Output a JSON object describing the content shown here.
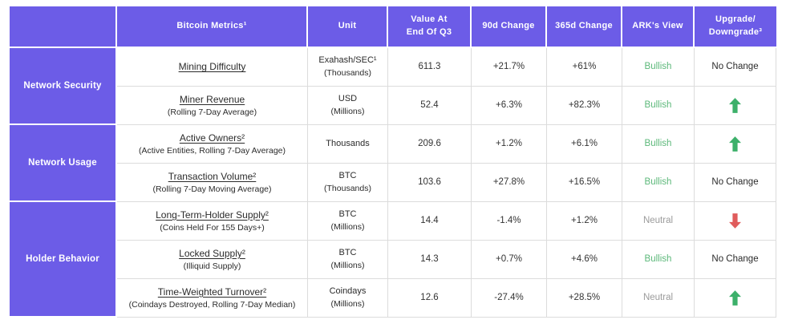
{
  "colors": {
    "purple": "#6c5ce7",
    "bullish": "#5cb87a",
    "neutral": "#9b9b9b",
    "arrow_up": "#3cb06a",
    "arrow_down": "#e05c5c"
  },
  "chart_data": {
    "type": "table",
    "headers": {
      "metrics": "Bitcoin Metrics¹",
      "unit": "Unit",
      "value": "Value At\nEnd Of Q3",
      "d90": "90d Change",
      "d365": "365d Change",
      "view": "ARK's View",
      "upgrade": "Upgrade/\nDowngrade³"
    },
    "groups": [
      {
        "label": "Network Security",
        "rows": [
          {
            "metric": "Mining Difficulty",
            "metric_sub": "",
            "unit": "Exahash/SEC¹",
            "unit_sub": "(Thousands)",
            "value": "611.3",
            "d90": "+21.7%",
            "d365": "+61%",
            "view": "Bullish",
            "view_style": "bullish",
            "change": {
              "type": "text",
              "label": "No Change"
            }
          },
          {
            "metric": "Miner Revenue",
            "metric_sub": "(Rolling 7-Day Average)",
            "unit": "USD",
            "unit_sub": "(Millions)",
            "value": "52.4",
            "d90": "+6.3%",
            "d365": "+82.3%",
            "view": "Bullish",
            "view_style": "bullish",
            "change": {
              "type": "up",
              "icon": "arrow-up-icon"
            }
          }
        ]
      },
      {
        "label": "Network Usage",
        "rows": [
          {
            "metric": "Active Owners²",
            "metric_sub": "(Active Entities, Rolling 7-Day Average)",
            "unit": "Thousands",
            "unit_sub": "",
            "value": "209.6",
            "d90": "+1.2%",
            "d365": "+6.1%",
            "view": "Bullish",
            "view_style": "bullish",
            "change": {
              "type": "up",
              "icon": "arrow-up-icon"
            }
          },
          {
            "metric": "Transaction Volume²",
            "metric_sub": "(Rolling 7-Day Moving Average)",
            "unit": "BTC",
            "unit_sub": "(Thousands)",
            "value": "103.6",
            "d90": "+27.8%",
            "d365": "+16.5%",
            "view": "Bullish",
            "view_style": "bullish",
            "change": {
              "type": "text",
              "label": "No Change"
            }
          }
        ]
      },
      {
        "label": "Holder Behavior",
        "rows": [
          {
            "metric": "Long-Term-Holder Supply²",
            "metric_sub": "(Coins Held For 155 Days+)",
            "unit": "BTC",
            "unit_sub": "(Millions)",
            "value": "14.4",
            "d90": "-1.4%",
            "d365": "+1.2%",
            "view": "Neutral",
            "view_style": "neutral",
            "change": {
              "type": "down",
              "icon": "arrow-down-icon"
            }
          },
          {
            "metric": "Locked Supply²",
            "metric_sub": "(Illiquid Supply)",
            "unit": "BTC",
            "unit_sub": "(Millions)",
            "value": "14.3",
            "d90": "+0.7%",
            "d365": "+4.6%",
            "view": "Bullish",
            "view_style": "bullish",
            "change": {
              "type": "text",
              "label": "No Change"
            }
          },
          {
            "metric": "Time-Weighted Turnover²",
            "metric_sub": "(Coindays Destroyed, Rolling 7-Day Median)",
            "unit": "Coindays",
            "unit_sub": "(Millions)",
            "value": "12.6",
            "d90": "-27.4%",
            "d365": "+28.5%",
            "view": "Neutral",
            "view_style": "neutral",
            "change": {
              "type": "up",
              "icon": "arrow-up-icon"
            }
          }
        ]
      }
    ]
  }
}
